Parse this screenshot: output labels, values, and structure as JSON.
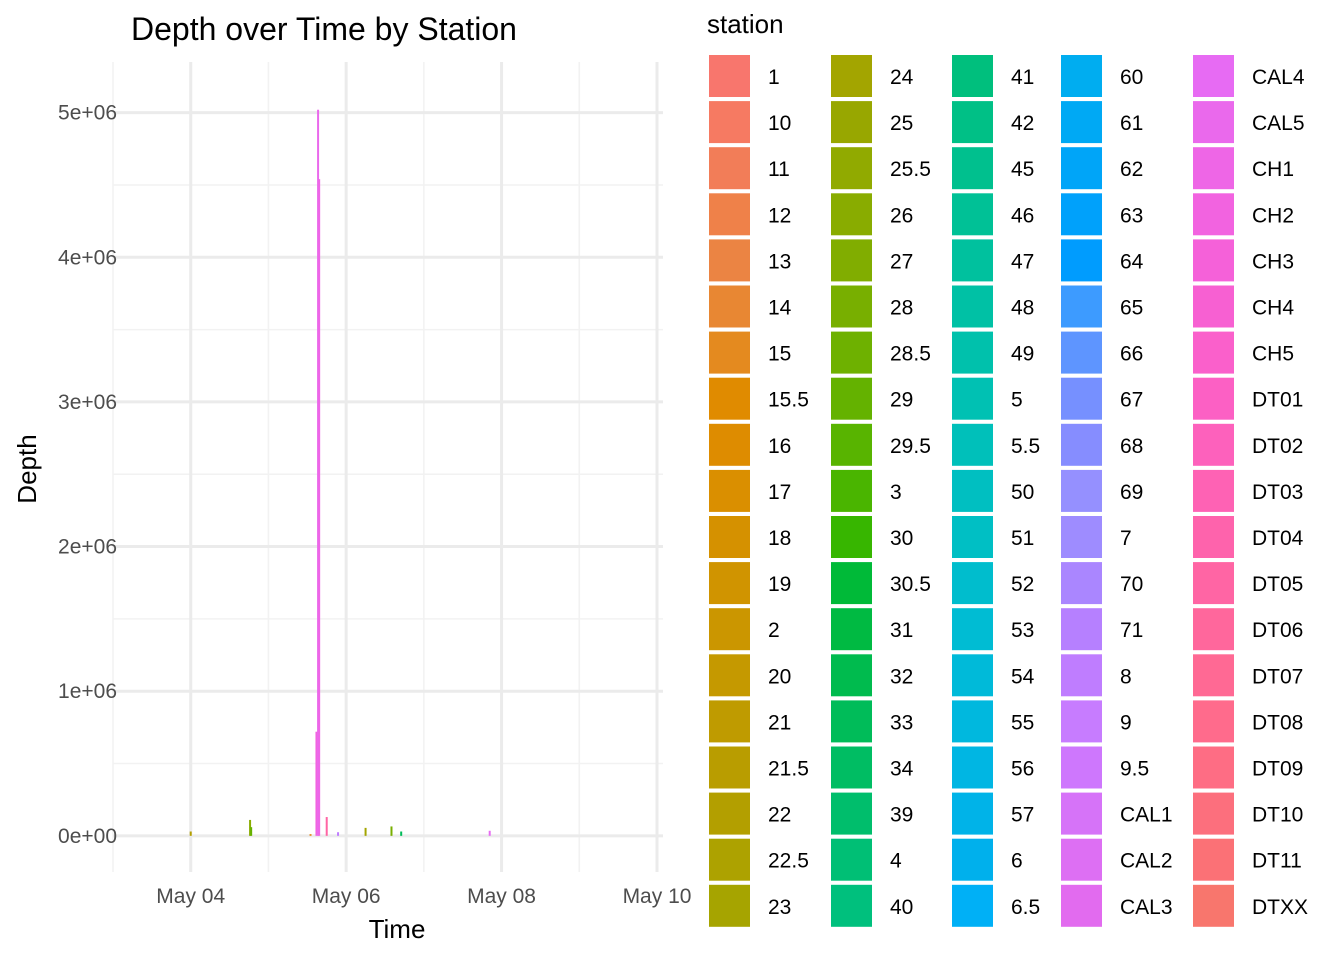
{
  "chart_data": {
    "type": "bar",
    "title": "Depth over Time by Station",
    "xlabel": "Time",
    "ylabel": "Depth",
    "x_scale": "date",
    "x_ticks": [
      "May 04",
      "May 06",
      "May 08",
      "May 10"
    ],
    "x_tick_dates": [
      "2023-05-04",
      "2023-05-06",
      "2023-05-08",
      "2023-05-10"
    ],
    "xlim": [
      "2023-05-03",
      "2023-05-10"
    ],
    "y_ticks": [
      "0e+00",
      "1e+06",
      "2e+06",
      "3e+06",
      "4e+06",
      "5e+06"
    ],
    "y_tick_values": [
      0,
      1000000,
      2000000,
      3000000,
      4000000,
      5000000
    ],
    "ylim": [
      -250000,
      5350000
    ],
    "grid": true,
    "legend_title": "station",
    "legend_position": "right",
    "stations": [
      {
        "name": "1",
        "color": "#F8766D"
      },
      {
        "name": "10",
        "color": "#F67A62"
      },
      {
        "name": "11",
        "color": "#F27D58"
      },
      {
        "name": "12",
        "color": "#EF8149"
      },
      {
        "name": "13",
        "color": "#EB8443"
      },
      {
        "name": "14",
        "color": "#E88733"
      },
      {
        "name": "15",
        "color": "#E48A1F"
      },
      {
        "name": "15.5",
        "color": "#E08B00"
      },
      {
        "name": "16",
        "color": "#DE8C00"
      },
      {
        "name": "17",
        "color": "#DA8F00"
      },
      {
        "name": "18",
        "color": "#D59100"
      },
      {
        "name": "19",
        "color": "#D09400"
      },
      {
        "name": "2",
        "color": "#CB9600"
      },
      {
        "name": "20",
        "color": "#C59900"
      },
      {
        "name": "21",
        "color": "#BF9B00"
      },
      {
        "name": "21.5",
        "color": "#B99D00"
      },
      {
        "name": "22",
        "color": "#B39F00"
      },
      {
        "name": "22.5",
        "color": "#ADA200"
      },
      {
        "name": "23",
        "color": "#A6A400"
      },
      {
        "name": "24",
        "color": "#A3A500"
      },
      {
        "name": "25",
        "color": "#98A700"
      },
      {
        "name": "25.5",
        "color": "#91AA00"
      },
      {
        "name": "26",
        "color": "#89AC00"
      },
      {
        "name": "27",
        "color": "#81AD00"
      },
      {
        "name": "28",
        "color": "#78AF00"
      },
      {
        "name": "28.5",
        "color": "#6EB100"
      },
      {
        "name": "29",
        "color": "#64B200"
      },
      {
        "name": "29.5",
        "color": "#58B400"
      },
      {
        "name": "3",
        "color": "#4AB500"
      },
      {
        "name": "30",
        "color": "#37B600"
      },
      {
        "name": "30.5",
        "color": "#00BA38"
      },
      {
        "name": "31",
        "color": "#00BA42"
      },
      {
        "name": "32",
        "color": "#00BB4E"
      },
      {
        "name": "33",
        "color": "#00BC59"
      },
      {
        "name": "34",
        "color": "#00BD63"
      },
      {
        "name": "39",
        "color": "#00BE6C"
      },
      {
        "name": "4",
        "color": "#00BF75"
      },
      {
        "name": "40",
        "color": "#00C07D"
      },
      {
        "name": "41",
        "color": "#00BF7D"
      },
      {
        "name": "42",
        "color": "#00C086"
      },
      {
        "name": "45",
        "color": "#00C08E"
      },
      {
        "name": "46",
        "color": "#00C196"
      },
      {
        "name": "47",
        "color": "#00C19E"
      },
      {
        "name": "48",
        "color": "#00C1A5"
      },
      {
        "name": "49",
        "color": "#00C1AC"
      },
      {
        "name": "5",
        "color": "#00C1B3"
      },
      {
        "name": "5.5",
        "color": "#00C0BA"
      },
      {
        "name": "50",
        "color": "#00BFC1"
      },
      {
        "name": "51",
        "color": "#00BFC4"
      },
      {
        "name": "52",
        "color": "#00BDCD"
      },
      {
        "name": "53",
        "color": "#00BCD3"
      },
      {
        "name": "54",
        "color": "#00BAD9"
      },
      {
        "name": "55",
        "color": "#00B8DE"
      },
      {
        "name": "56",
        "color": "#00B6E3"
      },
      {
        "name": "57",
        "color": "#00B3E8"
      },
      {
        "name": "6",
        "color": "#00B0EC"
      },
      {
        "name": "6.5",
        "color": "#00B0F6"
      },
      {
        "name": "60",
        "color": "#00ADF0"
      },
      {
        "name": "61",
        "color": "#00A9F4"
      },
      {
        "name": "62",
        "color": "#00A5F8"
      },
      {
        "name": "63",
        "color": "#00A1FB"
      },
      {
        "name": "64",
        "color": "#009CFE"
      },
      {
        "name": "65",
        "color": "#3D9BFF"
      },
      {
        "name": "66",
        "color": "#5E95FF"
      },
      {
        "name": "67",
        "color": "#7690FF"
      },
      {
        "name": "68",
        "color": "#868DFF"
      },
      {
        "name": "69",
        "color": "#9590FF"
      },
      {
        "name": "7",
        "color": "#9E8CFF"
      },
      {
        "name": "70",
        "color": "#AA86FF"
      },
      {
        "name": "71",
        "color": "#B680FF"
      },
      {
        "name": "8",
        "color": "#BF7DFF"
      },
      {
        "name": "9",
        "color": "#C77CFF"
      },
      {
        "name": "9.5",
        "color": "#CE77FD"
      },
      {
        "name": "CAL1",
        "color": "#D673F8"
      },
      {
        "name": "CAL2",
        "color": "#DD6FF3"
      },
      {
        "name": "CAL3",
        "color": "#E26BEF"
      },
      {
        "name": "CAL4",
        "color": "#E76BF3"
      },
      {
        "name": "CAL5",
        "color": "#EA69EC"
      },
      {
        "name": "CH1",
        "color": "#EE66E6"
      },
      {
        "name": "CH2",
        "color": "#F263E0"
      },
      {
        "name": "CH3",
        "color": "#F561D9"
      },
      {
        "name": "CH4",
        "color": "#F760D2"
      },
      {
        "name": "CH5",
        "color": "#FA60CB"
      },
      {
        "name": "DT01",
        "color": "#FC60C4"
      },
      {
        "name": "DT02",
        "color": "#FD61BC"
      },
      {
        "name": "DT03",
        "color": "#FE62B4"
      },
      {
        "name": "DT04",
        "color": "#FE63AC"
      },
      {
        "name": "DT05",
        "color": "#FF65A4"
      },
      {
        "name": "DT06",
        "color": "#FF679C"
      },
      {
        "name": "DT07",
        "color": "#FF6994"
      },
      {
        "name": "DT08",
        "color": "#FF6B8C"
      },
      {
        "name": "DT09",
        "color": "#FE6D84"
      },
      {
        "name": "DT10",
        "color": "#FC6F7D"
      },
      {
        "name": "DT11",
        "color": "#FB7176"
      },
      {
        "name": "DTXX",
        "color": "#F8766D"
      }
    ],
    "bars": [
      {
        "date": "2023-05-04 00:00",
        "value": 30000,
        "station": "22"
      },
      {
        "date": "2023-05-04 18:20",
        "value": 110000,
        "station": "26"
      },
      {
        "date": "2023-05-04 18:40",
        "value": 60000,
        "station": "29"
      },
      {
        "date": "2023-05-05 13:00",
        "value": 12000,
        "station": "15"
      },
      {
        "date": "2023-05-05 14:50",
        "value": 720000,
        "station": "CH2"
      },
      {
        "date": "2023-05-05 15:20",
        "value": 5020000,
        "station": "CAL5"
      },
      {
        "date": "2023-05-05 15:40",
        "value": 4540000,
        "station": "CH1"
      },
      {
        "date": "2023-05-05 18:00",
        "value": 130000,
        "station": "DT05"
      },
      {
        "date": "2023-05-05 21:30",
        "value": 25000,
        "station": "8"
      },
      {
        "date": "2023-05-06 06:00",
        "value": 55000,
        "station": "24"
      },
      {
        "date": "2023-05-06 14:00",
        "value": 65000,
        "station": "28"
      },
      {
        "date": "2023-05-06 17:00",
        "value": 30000,
        "station": "33"
      },
      {
        "date": "2023-05-07 20:20",
        "value": 35000,
        "station": "CAL4"
      }
    ]
  }
}
